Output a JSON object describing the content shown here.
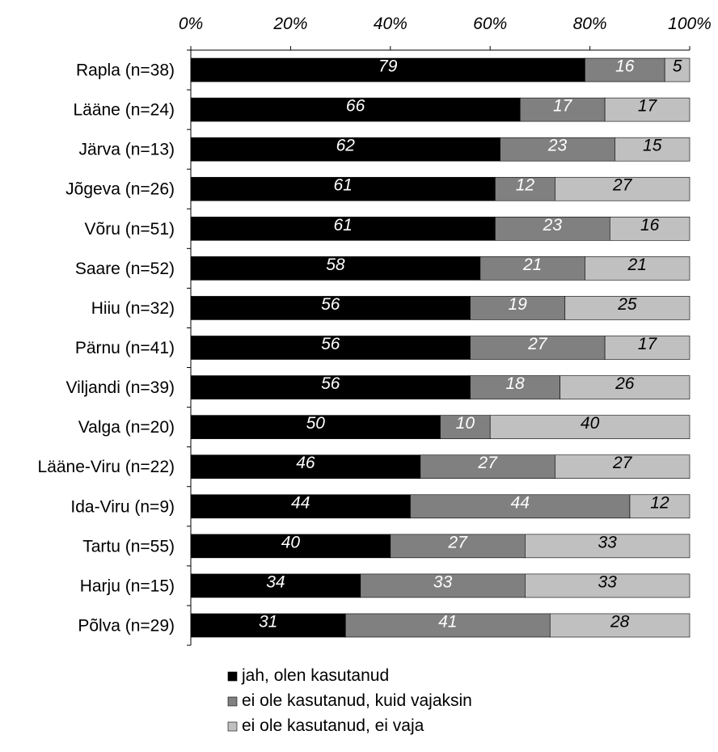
{
  "chart_data": {
    "type": "bar",
    "orientation": "horizontal",
    "stacked": true,
    "x_tick_labels": [
      "0%",
      "20%",
      "40%",
      "60%",
      "80%",
      "100%"
    ],
    "xlim": [
      0,
      100
    ],
    "grid": false,
    "legend_position": "bottom",
    "categories": [
      "Rapla (n=38)",
      "Lääne (n=24)",
      "Järva (n=13)",
      "Jõgeva (n=26)",
      "Võru (n=51)",
      "Saare (n=52)",
      "Hiiu (n=32)",
      "Pärnu (n=41)",
      "Viljandi (n=39)",
      "Valga (n=20)",
      "Lääne-Viru (n=22)",
      "Ida-Viru (n=9)",
      "Tartu (n=55)",
      "Harju (n=15)",
      "Põlva (n=29)"
    ],
    "series": [
      {
        "name": "jah, olen kasutanud",
        "color": "#000000",
        "label_color": "#ffffff",
        "values": [
          79,
          66,
          62,
          61,
          61,
          58,
          56,
          56,
          56,
          50,
          46,
          44,
          40,
          34,
          31
        ]
      },
      {
        "name": "ei ole kasutanud, kuid vajaksin",
        "color": "#808080",
        "label_color": "#ffffff",
        "values": [
          16,
          17,
          23,
          12,
          23,
          21,
          19,
          27,
          18,
          10,
          27,
          44,
          27,
          33,
          41
        ]
      },
      {
        "name": "ei ole kasutanud, ei vaja",
        "color": "#c0c0c0",
        "label_color": "#000000",
        "values": [
          5,
          17,
          15,
          27,
          16,
          21,
          25,
          17,
          26,
          40,
          27,
          12,
          33,
          33,
          28
        ]
      }
    ]
  }
}
